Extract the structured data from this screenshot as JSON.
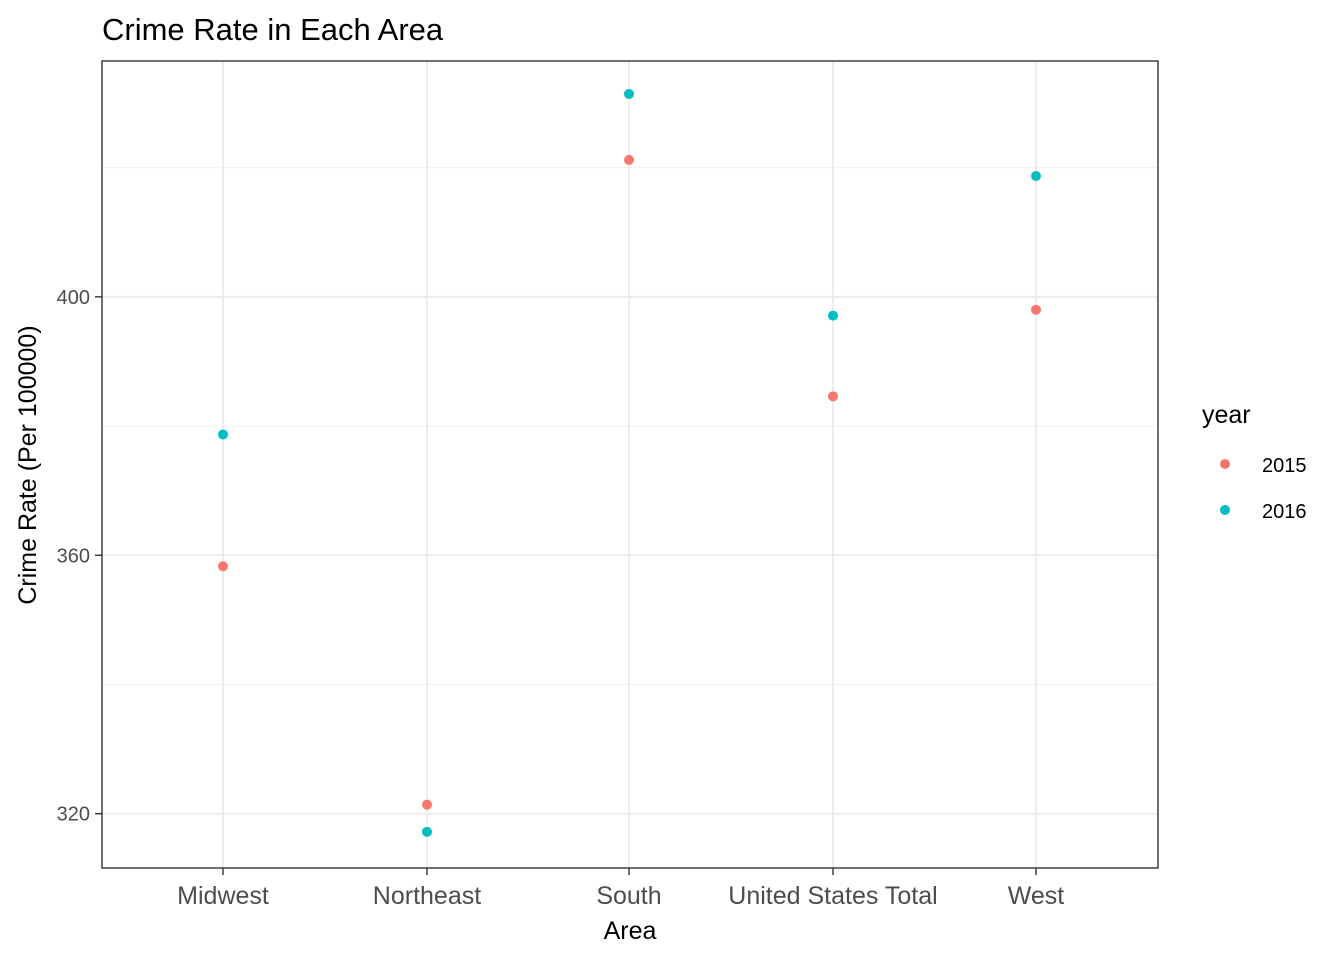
{
  "chart_data": {
    "type": "scatter",
    "title": "Crime Rate in Each Area",
    "xlabel": "Area",
    "ylabel": "Crime Rate (Per 100000)",
    "categories": [
      "Midwest",
      "Northeast",
      "South",
      "United States Total",
      "West"
    ],
    "ylim": [
      311.6,
      436.5
    ],
    "yticks": [
      320,
      360,
      400
    ],
    "y_minor_ticks": [
      340,
      380,
      420
    ],
    "grid": true,
    "legend": {
      "title": "year",
      "position": "right"
    },
    "series": [
      {
        "name": "2015",
        "color": "#F8766D",
        "values": [
          358.3,
          321.4,
          421.2,
          384.6,
          398.0
        ]
      },
      {
        "name": "2016",
        "color": "#00BFC4",
        "values": [
          378.7,
          317.2,
          431.4,
          397.1,
          418.7
        ]
      }
    ]
  }
}
